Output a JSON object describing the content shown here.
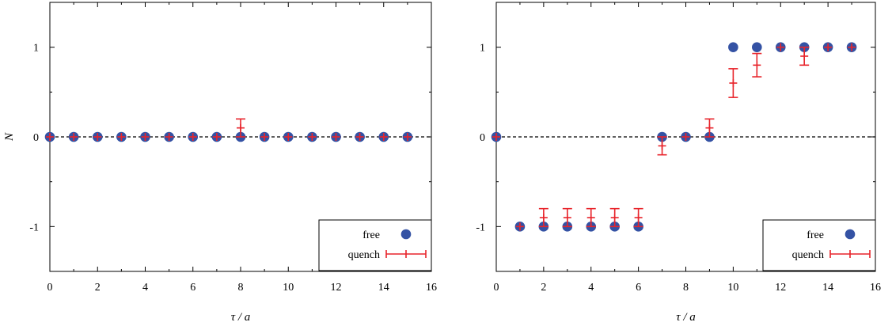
{
  "colors": {
    "free": "#3452a4",
    "quench": "#e8242b",
    "axis": "#000000",
    "zero_line": "#000000"
  },
  "chart_data": [
    {
      "type": "scatter",
      "xlabel": "τ / a",
      "ylabel": "N",
      "xlim": [
        0,
        16
      ],
      "ylim": [
        -1.5,
        1.5
      ],
      "xticks": [
        "0",
        "2",
        "4",
        "6",
        "8",
        "10",
        "12",
        "14",
        "16"
      ],
      "yticks": [
        "-1",
        "0",
        "1"
      ],
      "legend": {
        "placement": "bottom-right",
        "entries": [
          "free",
          "quench"
        ]
      },
      "series": [
        {
          "name": "free",
          "marker": "circle",
          "x": [
            0,
            1,
            2,
            3,
            4,
            5,
            6,
            7,
            8,
            9,
            10,
            11,
            12,
            13,
            14,
            15
          ],
          "y": [
            0,
            0,
            0,
            0,
            0,
            0,
            0,
            0,
            0,
            0,
            0,
            0,
            0,
            0,
            0,
            0
          ]
        },
        {
          "name": "quench",
          "marker": "errorbar",
          "x": [
            0,
            1,
            2,
            3,
            4,
            5,
            6,
            7,
            8,
            9,
            10,
            11,
            12,
            13,
            14,
            15
          ],
          "y": [
            0,
            0,
            0,
            0,
            0,
            0,
            0,
            0,
            0.1,
            0,
            0,
            0,
            0,
            0,
            0,
            0
          ],
          "err": [
            0,
            0,
            0,
            0,
            0,
            0,
            0,
            0,
            0.1,
            0,
            0,
            0,
            0,
            0,
            0,
            0
          ]
        }
      ]
    },
    {
      "type": "scatter",
      "xlabel": "τ / a",
      "ylabel": "",
      "xlim": [
        0,
        16
      ],
      "ylim": [
        -1.5,
        1.5
      ],
      "xticks": [
        "0",
        "2",
        "4",
        "6",
        "8",
        "10",
        "12",
        "14",
        "16"
      ],
      "yticks": [
        "-1",
        "0",
        "1"
      ],
      "legend": {
        "placement": "bottom-right",
        "entries": [
          "free",
          "quench"
        ]
      },
      "series": [
        {
          "name": "free",
          "marker": "circle",
          "x": [
            0,
            1,
            2,
            3,
            4,
            5,
            6,
            7,
            8,
            9,
            10,
            11,
            12,
            13,
            14,
            15
          ],
          "y": [
            0,
            -1,
            -1,
            -1,
            -1,
            -1,
            -1,
            0,
            0,
            0,
            1,
            1,
            1,
            1,
            1,
            1
          ]
        },
        {
          "name": "quench",
          "marker": "errorbar",
          "x": [
            0,
            1,
            2,
            3,
            4,
            5,
            6,
            7,
            8,
            9,
            10,
            11,
            12,
            13,
            14,
            15
          ],
          "y": [
            0,
            -1,
            -0.9,
            -0.9,
            -0.9,
            -0.9,
            -0.9,
            -0.1,
            0,
            0.1,
            0.6,
            0.8,
            1,
            0.9,
            1,
            1
          ],
          "err": [
            0,
            0,
            0.1,
            0.1,
            0.1,
            0.1,
            0.1,
            0.1,
            0,
            0.1,
            0.16,
            0.13,
            0,
            0.1,
            0,
            0
          ]
        }
      ]
    }
  ]
}
